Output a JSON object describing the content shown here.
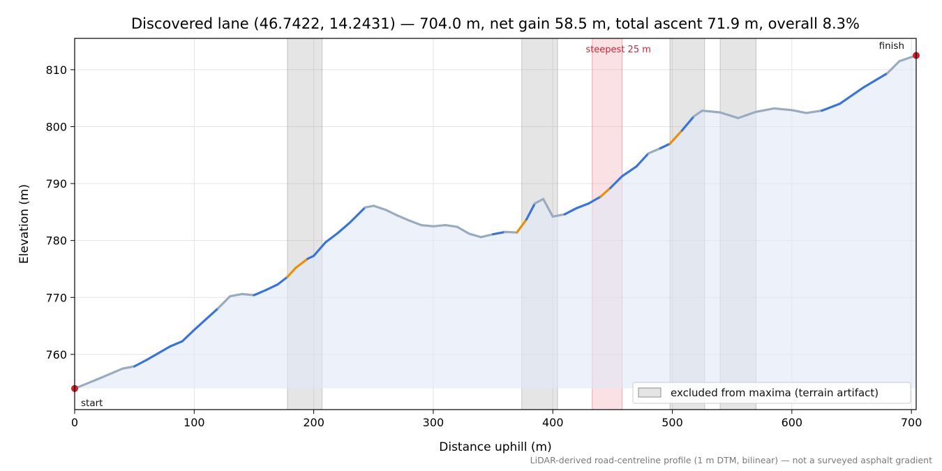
{
  "chart_data": {
    "type": "line",
    "title": "Discovered lane (46.7422, 14.2431) — 704.0 m, net gain 58.5 m, total ascent 71.9 m, overall 8.3%",
    "xlabel": "Distance uphill (m)",
    "ylabel": "Elevation (m)",
    "xlim": [
      0,
      704
    ],
    "ylim": [
      750.3,
      815.5
    ],
    "xticks": [
      0,
      100,
      200,
      300,
      400,
      500,
      600,
      700
    ],
    "yticks": [
      760,
      770,
      780,
      790,
      800,
      810
    ],
    "grid": true,
    "legend_position": "bottom-right",
    "legend": [
      {
        "label": "excluded from maxima (terrain artifact)",
        "color": "#a9a9a9"
      }
    ],
    "excluded_ranges": [
      [
        178,
        207
      ],
      [
        374,
        404
      ],
      [
        498,
        527
      ],
      [
        540,
        570
      ]
    ],
    "steepest_range": [
      433,
      458
    ],
    "steepest_label": "steepest 25 m",
    "start_label": "start",
    "finish_label": "finish",
    "credit": "LiDAR-derived road-centreline profile (1 m DTM, bilinear) — not a surveyed asphalt gradient",
    "colors": {
      "gentle": "#9aaabf",
      "moderate": "#3a74d6",
      "steep": "#e8900c",
      "fill": "#dfe7f6",
      "excluded": "#a9a9a9",
      "steepest": "#f2a9b1",
      "endpoint": "#c8202c"
    },
    "profile": [
      {
        "x": 0,
        "y": 754.0,
        "grade": "gentle"
      },
      {
        "x": 20,
        "y": 755.7,
        "grade": "gentle"
      },
      {
        "x": 40,
        "y": 757.5,
        "grade": "gentle"
      },
      {
        "x": 50,
        "y": 757.9,
        "grade": "gentle"
      },
      {
        "x": 60,
        "y": 759.0,
        "grade": "moderate"
      },
      {
        "x": 80,
        "y": 761.4,
        "grade": "moderate"
      },
      {
        "x": 90,
        "y": 762.3,
        "grade": "moderate"
      },
      {
        "x": 100,
        "y": 764.3,
        "grade": "moderate"
      },
      {
        "x": 110,
        "y": 766.2,
        "grade": "moderate"
      },
      {
        "x": 120,
        "y": 768.1,
        "grade": "moderate"
      },
      {
        "x": 130,
        "y": 770.2,
        "grade": "gentle"
      },
      {
        "x": 140,
        "y": 770.6,
        "grade": "gentle"
      },
      {
        "x": 150,
        "y": 770.4,
        "grade": "gentle"
      },
      {
        "x": 160,
        "y": 771.3,
        "grade": "moderate"
      },
      {
        "x": 170,
        "y": 772.3,
        "grade": "moderate"
      },
      {
        "x": 178,
        "y": 773.6,
        "grade": "moderate"
      },
      {
        "x": 185,
        "y": 775.2,
        "grade": "steep"
      },
      {
        "x": 195,
        "y": 776.8,
        "grade": "steep"
      },
      {
        "x": 200,
        "y": 777.3,
        "grade": "moderate"
      },
      {
        "x": 210,
        "y": 779.7,
        "grade": "moderate"
      },
      {
        "x": 220,
        "y": 781.3,
        "grade": "moderate"
      },
      {
        "x": 230,
        "y": 783.1,
        "grade": "moderate"
      },
      {
        "x": 243,
        "y": 785.8,
        "grade": "moderate"
      },
      {
        "x": 250,
        "y": 786.1,
        "grade": "gentle"
      },
      {
        "x": 260,
        "y": 785.4,
        "grade": "gentle"
      },
      {
        "x": 270,
        "y": 784.4,
        "grade": "gentle"
      },
      {
        "x": 280,
        "y": 783.5,
        "grade": "gentle"
      },
      {
        "x": 290,
        "y": 782.7,
        "grade": "gentle"
      },
      {
        "x": 300,
        "y": 782.5,
        "grade": "gentle"
      },
      {
        "x": 310,
        "y": 782.7,
        "grade": "gentle"
      },
      {
        "x": 320,
        "y": 782.4,
        "grade": "gentle"
      },
      {
        "x": 330,
        "y": 781.2,
        "grade": "gentle"
      },
      {
        "x": 340,
        "y": 780.6,
        "grade": "gentle"
      },
      {
        "x": 350,
        "y": 781.1,
        "grade": "gentle"
      },
      {
        "x": 360,
        "y": 781.5,
        "grade": "moderate"
      },
      {
        "x": 370,
        "y": 781.4,
        "grade": "gentle"
      },
      {
        "x": 378,
        "y": 783.7,
        "grade": "steep"
      },
      {
        "x": 385,
        "y": 786.5,
        "grade": "moderate"
      },
      {
        "x": 392,
        "y": 787.3,
        "grade": "gentle"
      },
      {
        "x": 400,
        "y": 784.2,
        "grade": "gentle"
      },
      {
        "x": 410,
        "y": 784.6,
        "grade": "gentle"
      },
      {
        "x": 420,
        "y": 785.7,
        "grade": "moderate"
      },
      {
        "x": 430,
        "y": 786.5,
        "grade": "moderate"
      },
      {
        "x": 440,
        "y": 787.7,
        "grade": "moderate"
      },
      {
        "x": 448,
        "y": 789.2,
        "grade": "steep"
      },
      {
        "x": 458,
        "y": 791.3,
        "grade": "moderate"
      },
      {
        "x": 470,
        "y": 793.0,
        "grade": "moderate"
      },
      {
        "x": 480,
        "y": 795.3,
        "grade": "moderate"
      },
      {
        "x": 490,
        "y": 796.2,
        "grade": "gentle"
      },
      {
        "x": 498,
        "y": 797.0,
        "grade": "moderate"
      },
      {
        "x": 508,
        "y": 799.3,
        "grade": "steep"
      },
      {
        "x": 518,
        "y": 801.8,
        "grade": "moderate"
      },
      {
        "x": 525,
        "y": 802.8,
        "grade": "gentle"
      },
      {
        "x": 540,
        "y": 802.5,
        "grade": "gentle"
      },
      {
        "x": 555,
        "y": 801.5,
        "grade": "gentle"
      },
      {
        "x": 570,
        "y": 802.6,
        "grade": "gentle"
      },
      {
        "x": 585,
        "y": 803.2,
        "grade": "gentle"
      },
      {
        "x": 600,
        "y": 802.9,
        "grade": "gentle"
      },
      {
        "x": 612,
        "y": 802.4,
        "grade": "gentle"
      },
      {
        "x": 625,
        "y": 802.8,
        "grade": "gentle"
      },
      {
        "x": 640,
        "y": 804.0,
        "grade": "moderate"
      },
      {
        "x": 660,
        "y": 806.9,
        "grade": "moderate"
      },
      {
        "x": 680,
        "y": 809.4,
        "grade": "moderate"
      },
      {
        "x": 690,
        "y": 811.5,
        "grade": "gentle"
      },
      {
        "x": 704,
        "y": 812.5,
        "grade": "gentle"
      }
    ]
  }
}
